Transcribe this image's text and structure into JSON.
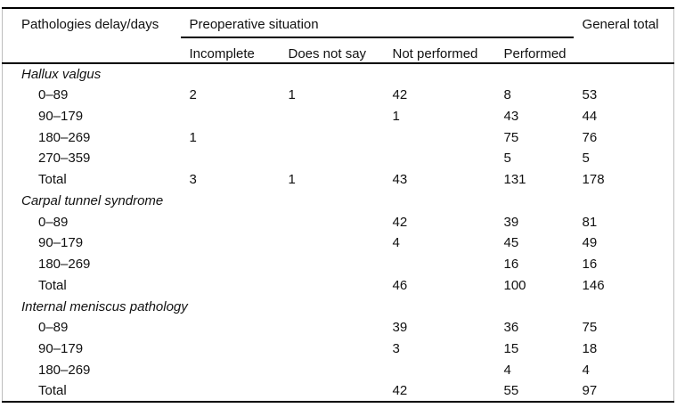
{
  "colors": {
    "rule": "#000000",
    "frame_side": "#bdbdbd",
    "text": "#111111",
    "background": "#ffffff"
  },
  "table": {
    "header": {
      "col1": "Pathologies delay/days",
      "group_label": "Preoperative situation",
      "subcolumns": [
        "Incomplete",
        "Does not say",
        "Not performed",
        "Performed"
      ],
      "total_label": "General total"
    },
    "sections": [
      {
        "name": "Hallux valgus",
        "rows": [
          {
            "label": "0–89",
            "values": [
              "2",
              "1",
              "42",
              "8",
              "53"
            ]
          },
          {
            "label": "90–179",
            "values": [
              "",
              "",
              "1",
              "43",
              "44"
            ]
          },
          {
            "label": "180–269",
            "values": [
              "1",
              "",
              "",
              "75",
              "76"
            ]
          },
          {
            "label": "270–359",
            "values": [
              "",
              "",
              "",
              "5",
              "5"
            ]
          },
          {
            "label": "Total",
            "values": [
              "3",
              "1",
              "43",
              "131",
              "178"
            ]
          }
        ]
      },
      {
        "name": "Carpal tunnel syndrome",
        "rows": [
          {
            "label": "0–89",
            "values": [
              "",
              "",
              "42",
              "39",
              "81"
            ]
          },
          {
            "label": "90–179",
            "values": [
              "",
              "",
              "4",
              "45",
              "49"
            ]
          },
          {
            "label": "180–269",
            "values": [
              "",
              "",
              "",
              "16",
              "16"
            ]
          },
          {
            "label": "Total",
            "values": [
              "",
              "",
              "46",
              "100",
              "146"
            ]
          }
        ]
      },
      {
        "name": "Internal meniscus pathology",
        "rows": [
          {
            "label": "0–89",
            "values": [
              "",
              "",
              "39",
              "36",
              "75"
            ]
          },
          {
            "label": "90–179",
            "values": [
              "",
              "",
              "3",
              "15",
              "18"
            ]
          },
          {
            "label": "180–269",
            "values": [
              "",
              "",
              "",
              "4",
              "4"
            ]
          },
          {
            "label": "Total",
            "values": [
              "",
              "",
              "42",
              "55",
              "97"
            ]
          }
        ]
      }
    ]
  }
}
